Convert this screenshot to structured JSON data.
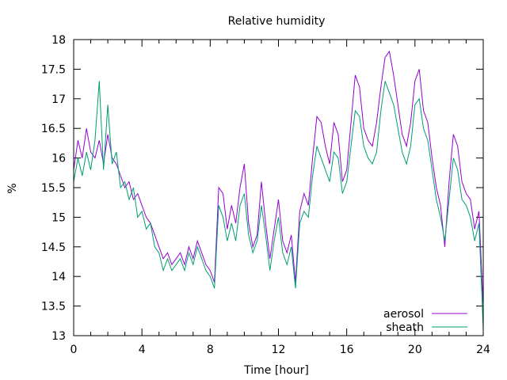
{
  "chart_data": {
    "type": "line",
    "title": "Relative humidity",
    "xlabel": "Time [hour]",
    "ylabel": "%",
    "xlim": [
      0,
      24
    ],
    "ylim": [
      13,
      18
    ],
    "xticks": [
      "0",
      "4",
      "8",
      "12",
      "16",
      "20",
      "24"
    ],
    "yticks": [
      "13",
      "13.5",
      "14",
      "14.5",
      "15",
      "15.5",
      "16",
      "16.5",
      "17",
      "17.5",
      "18"
    ],
    "legend_position": "bottom-right",
    "grid": false,
    "x_step_hours": 0.25,
    "series": [
      {
        "name": "aerosol",
        "color": "#9400d3",
        "values": [
          15.8,
          16.3,
          16.0,
          16.5,
          16.1,
          16.0,
          16.3,
          15.9,
          16.4,
          16.0,
          15.9,
          15.7,
          15.5,
          15.6,
          15.3,
          15.4,
          15.2,
          15.0,
          14.9,
          14.7,
          14.5,
          14.3,
          14.4,
          14.2,
          14.3,
          14.4,
          14.2,
          14.5,
          14.3,
          14.6,
          14.4,
          14.2,
          14.1,
          13.9,
          15.5,
          15.4,
          14.8,
          15.2,
          14.9,
          15.5,
          15.9,
          14.9,
          14.5,
          14.7,
          15.6,
          14.9,
          14.3,
          14.8,
          15.3,
          14.6,
          14.4,
          14.7,
          13.9,
          15.1,
          15.4,
          15.2,
          16.0,
          16.7,
          16.6,
          16.2,
          15.9,
          16.6,
          16.4,
          15.6,
          15.8,
          16.6,
          17.4,
          17.2,
          16.5,
          16.3,
          16.2,
          16.6,
          17.2,
          17.7,
          17.8,
          17.4,
          16.9,
          16.4,
          16.2,
          16.6,
          17.3,
          17.5,
          16.8,
          16.6,
          16.0,
          15.5,
          15.2,
          14.5,
          15.6,
          16.4,
          16.2,
          15.6,
          15.4,
          15.3,
          14.8,
          15.1,
          13.5
        ]
      },
      {
        "name": "sheath",
        "color": "#009e73",
        "values": [
          15.6,
          16.0,
          15.7,
          16.1,
          15.8,
          16.3,
          17.3,
          15.8,
          16.9,
          15.9,
          16.1,
          15.5,
          15.6,
          15.3,
          15.5,
          15.0,
          15.1,
          14.8,
          14.9,
          14.5,
          14.4,
          14.1,
          14.3,
          14.1,
          14.2,
          14.3,
          14.1,
          14.4,
          14.2,
          14.5,
          14.3,
          14.1,
          14.0,
          13.8,
          15.2,
          15.0,
          14.6,
          14.9,
          14.6,
          15.2,
          15.4,
          14.7,
          14.4,
          14.6,
          15.2,
          14.7,
          14.1,
          14.6,
          15.0,
          14.4,
          14.2,
          14.5,
          13.8,
          14.9,
          15.1,
          15.0,
          15.7,
          16.2,
          16.0,
          15.8,
          15.6,
          16.1,
          16.0,
          15.4,
          15.6,
          16.2,
          16.8,
          16.7,
          16.2,
          16.0,
          15.9,
          16.1,
          16.8,
          17.3,
          17.1,
          16.9,
          16.5,
          16.1,
          15.9,
          16.2,
          16.9,
          17.0,
          16.5,
          16.3,
          15.8,
          15.3,
          15.0,
          14.6,
          15.3,
          16.0,
          15.8,
          15.3,
          15.2,
          15.0,
          14.6,
          14.9,
          13.1
        ]
      }
    ]
  }
}
